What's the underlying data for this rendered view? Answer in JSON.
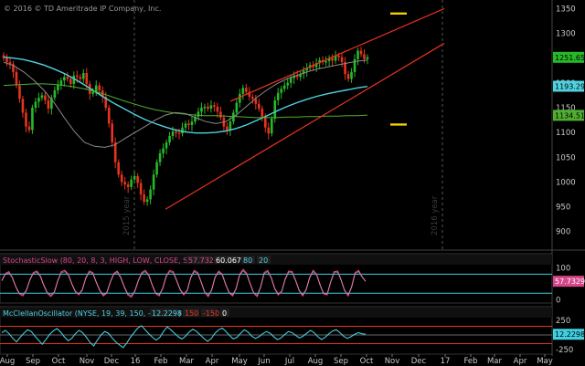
{
  "copyright": "© 2016 © TD Ameritrade IP Company, Inc.",
  "year_marks": [
    "2015 year",
    "2016 year"
  ],
  "colors": {
    "bg": "#000000",
    "candle_up": "#27b829",
    "candle_down": "#e8331e",
    "ma_cyan": "#4fd2e0",
    "ma_green": "#4fae2f",
    "ma_gray": "#8a8a8a",
    "channel": "#e8331e",
    "target": "#f5d000",
    "osc_cyan": "#3fcfe0",
    "stoch_line": "#d8468a"
  },
  "chart_data": [
    {
      "type": "candlestick",
      "title": "",
      "y_ticks": [
        "1350",
        "1300",
        "1250",
        "1200",
        "1150",
        "1100",
        "1050",
        "1000",
        "950",
        "900"
      ],
      "ylim": [
        870,
        1360
      ],
      "x_ticks": [
        "Aug",
        "Sep",
        "Oct",
        "Nov",
        "Dec",
        "16",
        "Feb",
        "Mar",
        "Apr",
        "May",
        "Jun",
        "Jul",
        "Aug",
        "Sep",
        "Oct",
        "Nov",
        "Dec",
        "17",
        "Feb",
        "Mar",
        "Apr",
        "May"
      ],
      "price_labels": [
        {
          "value": "1251.65",
          "color": "#27b829"
        },
        {
          "value": "1193.29",
          "color": "#4fd2e0"
        },
        {
          "value": "1134.51",
          "color": "#4fae2f"
        }
      ],
      "closes": [
        1250,
        1242,
        1238,
        1222,
        1195,
        1168,
        1140,
        1112,
        1105,
        1150,
        1162,
        1170,
        1175,
        1165,
        1148,
        1170,
        1185,
        1196,
        1205,
        1212,
        1208,
        1198,
        1215,
        1212,
        1208,
        1220,
        1198,
        1178,
        1182,
        1195,
        1185,
        1172,
        1150,
        1118,
        1080,
        1040,
        1015,
        1000,
        995,
        990,
        1005,
        1012,
        998,
        975,
        960,
        965,
        985,
        1015,
        1040,
        1058,
        1068,
        1080,
        1093,
        1102,
        1100,
        1098,
        1110,
        1118,
        1115,
        1122,
        1132,
        1142,
        1150,
        1152,
        1148,
        1155,
        1152,
        1142,
        1130,
        1112,
        1105,
        1122,
        1140,
        1160,
        1178,
        1190,
        1182,
        1172,
        1168,
        1158,
        1148,
        1130,
        1110,
        1098,
        1128,
        1165,
        1180,
        1188,
        1195,
        1200,
        1210,
        1215,
        1212,
        1218,
        1225,
        1230,
        1236,
        1232,
        1240,
        1246,
        1242,
        1244,
        1250,
        1245,
        1255,
        1252,
        1242,
        1218,
        1208,
        1222,
        1248,
        1265,
        1258,
        1248,
        1252
      ],
      "series": [
        {
          "name": "",
          "color": "#4fd2e0",
          "values": [
            1252,
            1250,
            1247,
            1242,
            1236,
            1228,
            1219,
            1208,
            1196,
            1183,
            1170,
            1158,
            1147,
            1136,
            1126,
            1118,
            1111,
            1105,
            1101,
            1099,
            1099,
            1100,
            1103,
            1108,
            1115,
            1124,
            1133,
            1143,
            1152,
            1160,
            1167,
            1173,
            1178,
            1182,
            1186,
            1190,
            1193
          ]
        },
        {
          "name": "",
          "color": "#4fae2f",
          "values": [
            1195,
            1196,
            1197,
            1198,
            1198,
            1197,
            1195,
            1192,
            1188,
            1183,
            1177,
            1170,
            1163,
            1157,
            1151,
            1146,
            1142,
            1139,
            1137,
            1135,
            1134,
            1134,
            1133,
            1132,
            1131,
            1130,
            1130,
            1130,
            1131,
            1131,
            1132,
            1132,
            1133,
            1133,
            1134,
            1134,
            1135
          ]
        },
        {
          "name": "",
          "color": "#8a8a8a",
          "values": [
            1242,
            1235,
            1222,
            1205,
            1185,
            1160,
            1130,
            1102,
            1080,
            1072,
            1070,
            1075,
            1088,
            1100,
            1112,
            1125,
            1135,
            1140,
            1138,
            1130,
            1122,
            1118,
            1122,
            1135,
            1152,
            1170,
            1185,
            1198,
            1208,
            1215,
            1222,
            1228,
            1232,
            1236,
            1240,
            1244,
            1246
          ]
        }
      ]
    },
    {
      "type": "line",
      "title": "StochasticSlow (80, 20, 8, 3, HIGH, LOW, CLOSE, SIMPLE)",
      "legend_values": [
        "57.7329",
        "60.0672",
        "80",
        "20"
      ],
      "y_ticks": [
        "100",
        "0"
      ],
      "current_value": "57.7329",
      "ylim": [
        -5,
        110
      ],
      "levels": [
        80,
        20
      ],
      "values": [
        60,
        82,
        88,
        70,
        40,
        18,
        12,
        28,
        62,
        85,
        90,
        75,
        45,
        20,
        10,
        22,
        60,
        88,
        92,
        80,
        50,
        25,
        15,
        30,
        68,
        90,
        85,
        55,
        28,
        12,
        20,
        55,
        82,
        90,
        70,
        40,
        15,
        8,
        25,
        60,
        85,
        92,
        78,
        45,
        18,
        12,
        35,
        75,
        92,
        88,
        60,
        30,
        15,
        28,
        70,
        92,
        85,
        55,
        22,
        10,
        30,
        72,
        90,
        80,
        48,
        20,
        12,
        35,
        80,
        95,
        82,
        50,
        20,
        10,
        40,
        85,
        92,
        70,
        35,
        15,
        25,
        65,
        90,
        88,
        60,
        28,
        12,
        30,
        70,
        92,
        80,
        45,
        18,
        15,
        55,
        88,
        90,
        62,
        28,
        12,
        40,
        85,
        92,
        72,
        58
      ]
    },
    {
      "type": "line",
      "title": "McClellanOscillator (NYSE, 19, 39, 150, -150, no)",
      "legend_values": [
        "12.2298",
        "150",
        "-150",
        "0"
      ],
      "y_ticks": [
        "250",
        "0",
        "-250"
      ],
      "current_value": "12.2298",
      "ylim": [
        -300,
        300
      ],
      "levels": [
        150,
        0,
        -150
      ],
      "values": [
        40,
        80,
        20,
        -60,
        -120,
        -40,
        30,
        90,
        60,
        -20,
        -90,
        -160,
        -80,
        10,
        70,
        110,
        50,
        -30,
        -100,
        -60,
        20,
        80,
        40,
        -40,
        -130,
        -190,
        -90,
        0,
        60,
        30,
        -50,
        -120,
        -170,
        -220,
        -140,
        -40,
        40,
        120,
        160,
        90,
        20,
        -40,
        -90,
        -40,
        60,
        140,
        90,
        30,
        -30,
        -70,
        -20,
        50,
        100,
        60,
        0,
        -60,
        -110,
        -60,
        30,
        90,
        120,
        60,
        -10,
        -70,
        -40,
        30,
        90,
        50,
        -20,
        -60,
        -30,
        20,
        60,
        30,
        -30,
        -80,
        -50,
        10,
        60,
        40,
        -10,
        -50,
        -20,
        30,
        80,
        40,
        -30,
        -80,
        -40,
        20,
        70,
        90,
        40,
        -20,
        -60,
        -30,
        10,
        40,
        20,
        12
      ]
    }
  ]
}
